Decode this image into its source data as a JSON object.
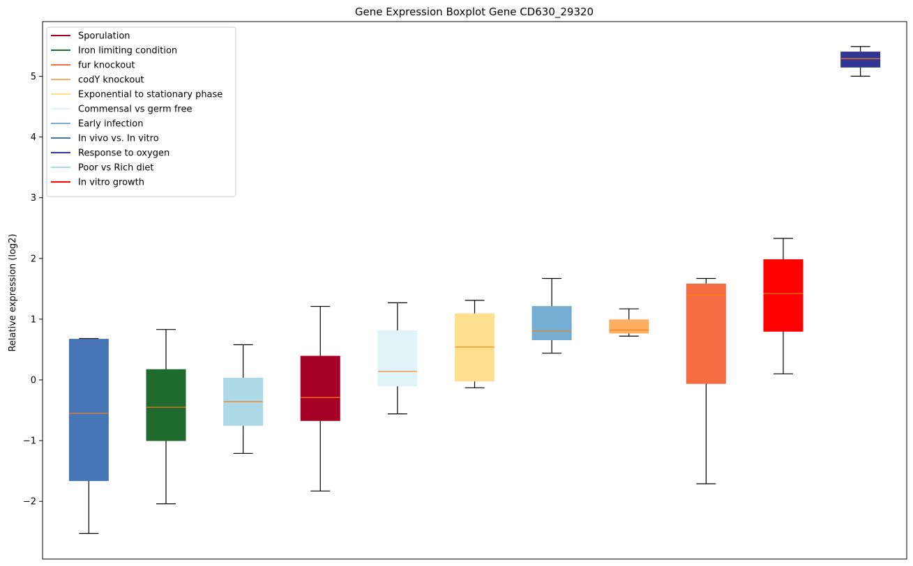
{
  "chart_data": {
    "type": "boxplot",
    "title": "Gene Expression Boxplot Gene CD630_29320",
    "xlabel": "",
    "ylabel": "Relative expression (log2)",
    "ylim": [
      -2.95,
      5.9
    ],
    "yticks": [
      -2,
      -1,
      0,
      1,
      2,
      3,
      4,
      5
    ],
    "ytick_labels": [
      "−2",
      "−1",
      "0",
      "1",
      "2",
      "3",
      "4",
      "5"
    ],
    "legend_position": "top-left",
    "median_color": "#ff7f0e",
    "legend": [
      {
        "label": "Sporulation",
        "color": "#a50026"
      },
      {
        "label": "Iron limiting condition",
        "color": "#1f6b2e"
      },
      {
        "label": "fur knockout",
        "color": "#f46d43"
      },
      {
        "label": "codY knockout",
        "color": "#fdae61"
      },
      {
        "label": "Exponential to stationary phase",
        "color": "#fee090"
      },
      {
        "label": "Commensal vs germ free",
        "color": "#e0f3f8"
      },
      {
        "label": "Early infection",
        "color": "#74add1"
      },
      {
        "label": "In vivo vs. In vitro",
        "color": "#4575b4"
      },
      {
        "label": "Response to oxygen",
        "color": "#313695"
      },
      {
        "label": "Poor vs Rich diet",
        "color": "#add8e6"
      },
      {
        "label": "In vitro growth",
        "color": "#ff0000"
      }
    ],
    "boxes": [
      {
        "group": "In vivo vs. In vitro",
        "color": "#4575b4",
        "whisker_low": -2.53,
        "q1": -1.66,
        "median": -0.55,
        "q3": 0.67,
        "whisker_high": 0.68
      },
      {
        "group": "Iron limiting condition",
        "color": "#1f6b2e",
        "whisker_low": -2.04,
        "q1": -1.0,
        "median": -0.45,
        "q3": 0.17,
        "whisker_high": 0.83
      },
      {
        "group": "Poor vs Rich diet",
        "color": "#add8e6",
        "whisker_low": -1.21,
        "q1": -0.75,
        "median": -0.36,
        "q3": 0.03,
        "whisker_high": 0.58
      },
      {
        "group": "Sporulation",
        "color": "#a50026",
        "whisker_low": -1.83,
        "q1": -0.67,
        "median": -0.29,
        "q3": 0.39,
        "whisker_high": 1.21
      },
      {
        "group": "Commensal vs germ free",
        "color": "#e0f3f8",
        "whisker_low": -0.56,
        "q1": -0.1,
        "median": 0.14,
        "q3": 0.81,
        "whisker_high": 1.27
      },
      {
        "group": "Exponential to stationary phase",
        "color": "#fee090",
        "whisker_low": -0.13,
        "q1": -0.02,
        "median": 0.54,
        "q3": 1.09,
        "whisker_high": 1.31
      },
      {
        "group": "Early infection",
        "color": "#74add1",
        "whisker_low": 0.44,
        "q1": 0.66,
        "median": 0.8,
        "q3": 1.21,
        "whisker_high": 1.67
      },
      {
        "group": "codY knockout",
        "color": "#fdae61",
        "whisker_low": 0.72,
        "q1": 0.77,
        "median": 0.82,
        "q3": 0.99,
        "whisker_high": 1.17
      },
      {
        "group": "fur knockout",
        "color": "#f46d43",
        "whisker_low": -1.71,
        "q1": -0.06,
        "median": 1.4,
        "q3": 1.58,
        "whisker_high": 1.67
      },
      {
        "group": "In vitro growth",
        "color": "#ff0000",
        "whisker_low": 0.1,
        "q1": 0.8,
        "median": 1.42,
        "q3": 1.98,
        "whisker_high": 2.33
      },
      {
        "group": "Response to oxygen",
        "color": "#313695",
        "whisker_low": 5.0,
        "q1": 5.15,
        "median": 5.29,
        "q3": 5.4,
        "whisker_high": 5.49
      }
    ]
  }
}
